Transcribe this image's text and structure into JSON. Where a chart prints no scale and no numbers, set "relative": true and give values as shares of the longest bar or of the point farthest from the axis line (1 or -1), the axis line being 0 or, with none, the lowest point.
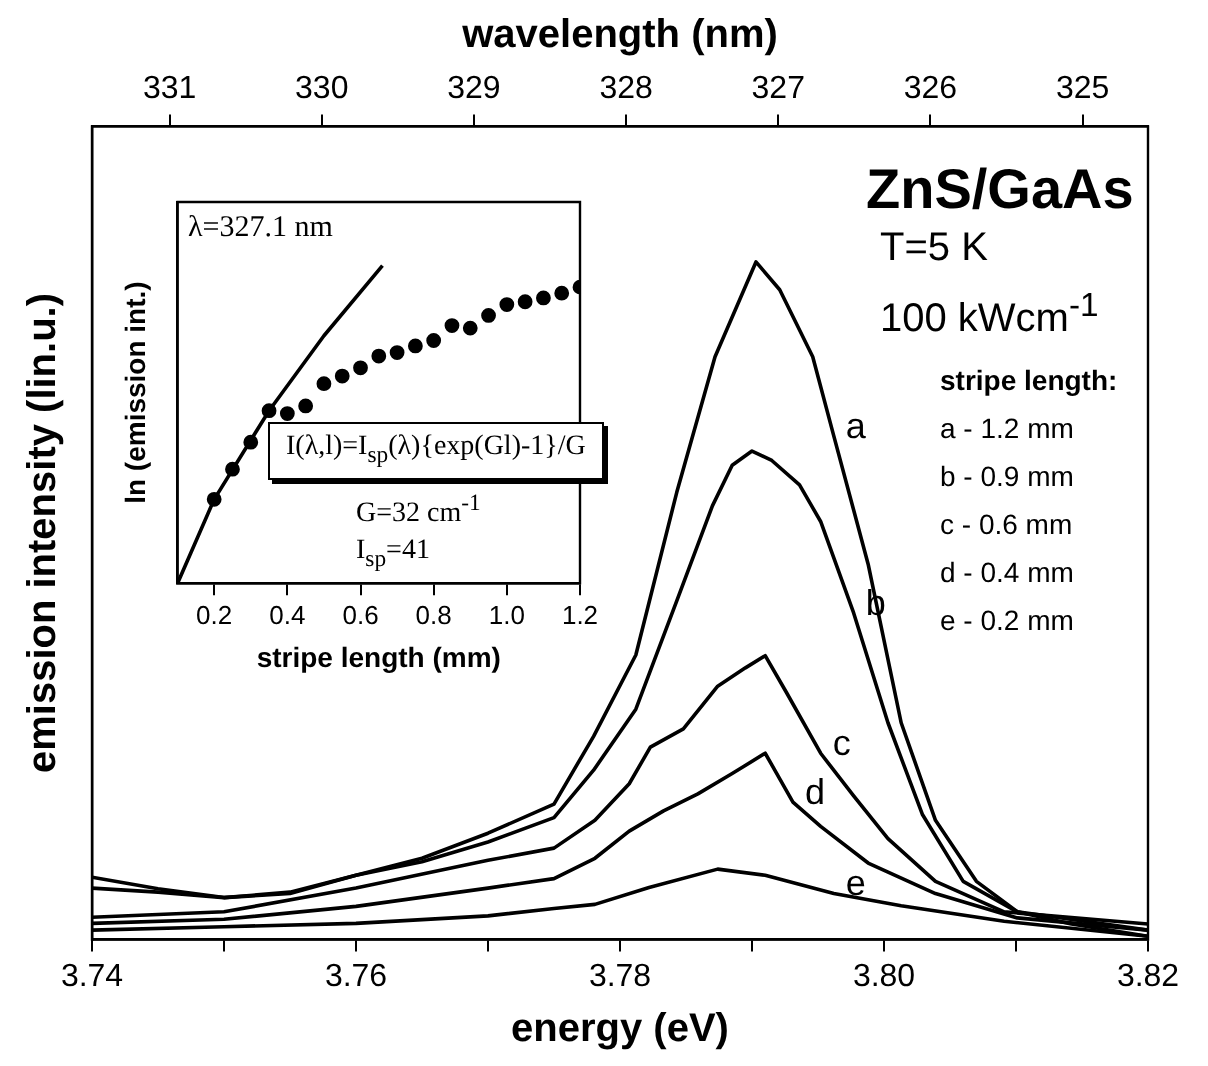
{
  "chart_data": [
    {
      "type": "line",
      "xlabel": "energy (eV)",
      "ylabel": "emission intensity (lin.u.)",
      "x2label": "wavelength (nm)",
      "relative": true,
      "xlim": [
        3.74,
        3.82
      ],
      "xticks": [
        3.74,
        {
          "value": 3.75,
          "label": null
        },
        3.76,
        {
          "value": 3.77,
          "label": null
        },
        3.78,
        {
          "value": 3.79,
          "label": null
        },
        {
          "value": 3.8,
          "label": "3.80"
        },
        {
          "value": 3.81,
          "label": null
        },
        3.82
      ],
      "x2lim": [
        331.51,
        324.57
      ],
      "x2ticks": [
        331,
        330,
        329,
        328,
        327,
        326,
        325
      ],
      "series": [
        {
          "name": "a",
          "color": "#000000",
          "x": [
            3.74,
            3.745,
            3.75,
            3.755,
            3.76,
            3.765,
            3.77,
            3.775,
            3.778,
            3.7812,
            3.7843,
            3.7872,
            3.7903,
            3.7921,
            3.7946,
            3.7962,
            3.7988,
            3.8013,
            3.8039,
            3.807,
            3.8101,
            3.8142,
            3.82
          ],
          "values": [
            0.092,
            0.075,
            0.062,
            0.07,
            0.095,
            0.12,
            0.157,
            0.2,
            0.3,
            0.42,
            0.66,
            0.86,
            1,
            0.959,
            0.86,
            0.743,
            0.554,
            0.32,
            0.176,
            0.086,
            0.041,
            0.023,
            0.005
          ]
        },
        {
          "name": "b",
          "color": "#000000",
          "x": [
            3.74,
            3.745,
            3.75,
            3.755,
            3.76,
            3.765,
            3.77,
            3.775,
            3.778,
            3.7812,
            3.7843,
            3.787,
            3.7885,
            3.79,
            3.7915,
            3.7936,
            3.7952,
            3.7977,
            3.8003,
            3.8029,
            3.806,
            3.8101,
            3.82
          ],
          "values": [
            0.076,
            0.07,
            0.062,
            0.068,
            0.095,
            0.115,
            0.144,
            0.18,
            0.25,
            0.34,
            0.5,
            0.64,
            0.7,
            0.721,
            0.707,
            0.671,
            0.617,
            0.482,
            0.32,
            0.185,
            0.086,
            0.041,
            0.014
          ]
        },
        {
          "name": "c",
          "color": "#000000",
          "x": [
            3.74,
            3.75,
            3.76,
            3.77,
            3.775,
            3.7781,
            3.7807,
            3.7823,
            3.7848,
            3.7874,
            3.7895,
            3.791,
            3.7926,
            3.7952,
            3.7977,
            3.8003,
            3.8039,
            3.8091,
            3.82
          ],
          "values": [
            0.033,
            0.041,
            0.076,
            0.117,
            0.135,
            0.176,
            0.23,
            0.284,
            0.311,
            0.374,
            0.401,
            0.419,
            0.365,
            0.275,
            0.212,
            0.149,
            0.086,
            0.041,
            0.023
          ]
        },
        {
          "name": "d",
          "color": "#000000",
          "x": [
            3.74,
            3.75,
            3.76,
            3.77,
            3.775,
            3.7781,
            3.7807,
            3.7833,
            3.7859,
            3.7885,
            3.791,
            3.7931,
            3.7952,
            3.7988,
            3.8039,
            3.8101,
            3.82
          ],
          "values": [
            0.024,
            0.03,
            0.049,
            0.076,
            0.09,
            0.12,
            0.16,
            0.19,
            0.215,
            0.245,
            0.275,
            0.203,
            0.167,
            0.113,
            0.068,
            0.032,
            0.014
          ]
        },
        {
          "name": "e",
          "color": "#000000",
          "x": [
            3.74,
            3.75,
            3.76,
            3.77,
            3.775,
            3.7781,
            3.7822,
            3.7874,
            3.791,
            3.7962,
            3.8013,
            3.8091,
            3.82
          ],
          "values": [
            0.014,
            0.019,
            0.024,
            0.035,
            0.046,
            0.052,
            0.077,
            0.104,
            0.095,
            0.068,
            0.05,
            0.027,
            0.005
          ]
        }
      ],
      "annotations": [
        "ZnS/GaAs",
        "T=5 K",
        "100 kWcm$^{-1}$",
        "stripe length:",
        "a - 1.2 mm",
        "b - 0.9 mm",
        "c - 0.6 mm",
        "d - 0.4 mm",
        "e - 0.2 mm"
      ]
    },
    {
      "type": "scatter",
      "xlabel": "stripe length (mm)",
      "ylabel": "ln (emission int.)",
      "relative": true,
      "marker": "circle",
      "xlim": [
        0.1,
        1.2
      ],
      "xticks": [
        0.2,
        0.4,
        0.6,
        0.8,
        {
          "value": 1,
          "label": "1.0"
        },
        1.2
      ],
      "series": [
        {
          "color": "#000000",
          "x": [
            0.2,
            0.25,
            0.3,
            0.35,
            0.4,
            0.45,
            0.5,
            0.55,
            0.6,
            0.65,
            0.7,
            0.75,
            0.8,
            0.85,
            0.9,
            0.95,
            1,
            1.05,
            1.1,
            1.15,
            1.2
          ],
          "values": [
            0.264,
            0.359,
            0.444,
            0.543,
            0.534,
            0.558,
            0.628,
            0.652,
            0.678,
            0.715,
            0.726,
            0.747,
            0.764,
            0.811,
            0.803,
            0.843,
            0.877,
            0.886,
            0.898,
            0.913,
            0.932
          ]
        },
        {
          "type": "line",
          "marker": "none",
          "color": "#000000",
          "x": [
            0.1,
            0.2,
            0.35,
            0.5,
            0.66
          ],
          "values": [
            0,
            0.264,
            0.543,
            0.779,
            1
          ]
        }
      ],
      "annotations": [
        "λ=327.1 nm",
        "I(λ,l)=I$_{sp}$(λ){exp(Gl)-1}/G",
        "G=32 cm$^{-1}$",
        "I$_{sp}$=41"
      ]
    }
  ]
}
